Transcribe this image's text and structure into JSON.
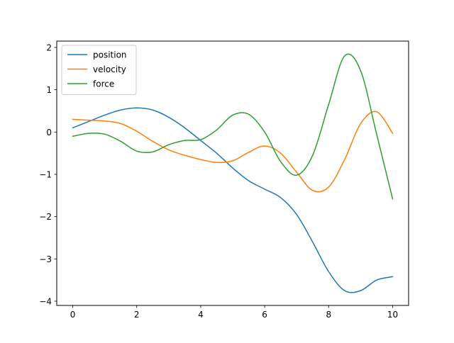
{
  "chart_data": {
    "type": "line",
    "title": "",
    "xlabel": "",
    "ylabel": "",
    "xlim": [
      -0.5,
      10.5
    ],
    "ylim": [
      -4.1,
      2.15
    ],
    "xticks": [
      0,
      2,
      4,
      6,
      8,
      10
    ],
    "yticks": [
      -4,
      -3,
      -2,
      -1,
      0,
      1,
      2
    ],
    "xtick_labels": [
      "0",
      "2",
      "4",
      "6",
      "8",
      "10"
    ],
    "ytick_labels": [
      "−4",
      "−3",
      "−2",
      "−1",
      "0",
      "1",
      "2"
    ],
    "grid": false,
    "legend": "upper-left",
    "series": [
      {
        "name": "position",
        "color": "#1f77b4",
        "x": [
          0,
          0.5,
          1,
          1.5,
          2,
          2.5,
          3,
          3.5,
          4,
          4.5,
          5,
          5.5,
          6,
          6.5,
          7,
          7.5,
          8,
          8.5,
          9,
          9.5,
          10
        ],
        "y": [
          0.1,
          0.25,
          0.4,
          0.52,
          0.57,
          0.52,
          0.35,
          0.1,
          -0.2,
          -0.5,
          -0.85,
          -1.15,
          -1.35,
          -1.55,
          -1.95,
          -2.6,
          -3.3,
          -3.75,
          -3.75,
          -3.5,
          -3.42
        ]
      },
      {
        "name": "velocity",
        "color": "#ff7f0e",
        "x": [
          0,
          0.5,
          1,
          1.5,
          2,
          2.5,
          3,
          3.5,
          4,
          4.5,
          5,
          5.5,
          6,
          6.5,
          7,
          7.5,
          8,
          8.5,
          9,
          9.5,
          10
        ],
        "y": [
          0.3,
          0.28,
          0.26,
          0.2,
          0.02,
          -0.22,
          -0.42,
          -0.55,
          -0.65,
          -0.72,
          -0.68,
          -0.48,
          -0.33,
          -0.5,
          -0.95,
          -1.38,
          -1.3,
          -0.65,
          0.2,
          0.48,
          -0.03
        ]
      },
      {
        "name": "force",
        "color": "#2ca02c",
        "x": [
          0,
          0.5,
          1,
          1.5,
          2,
          2.5,
          3,
          3.5,
          4,
          4.5,
          5,
          5.5,
          6,
          6.5,
          7,
          7.5,
          8,
          8.5,
          9,
          9.5,
          10
        ],
        "y": [
          -0.1,
          -0.03,
          -0.05,
          -0.22,
          -0.45,
          -0.47,
          -0.3,
          -0.2,
          -0.18,
          0.05,
          0.4,
          0.42,
          0.0,
          -0.7,
          -1.02,
          -0.55,
          0.65,
          1.8,
          1.45,
          -0.05,
          -1.58
        ]
      }
    ]
  }
}
